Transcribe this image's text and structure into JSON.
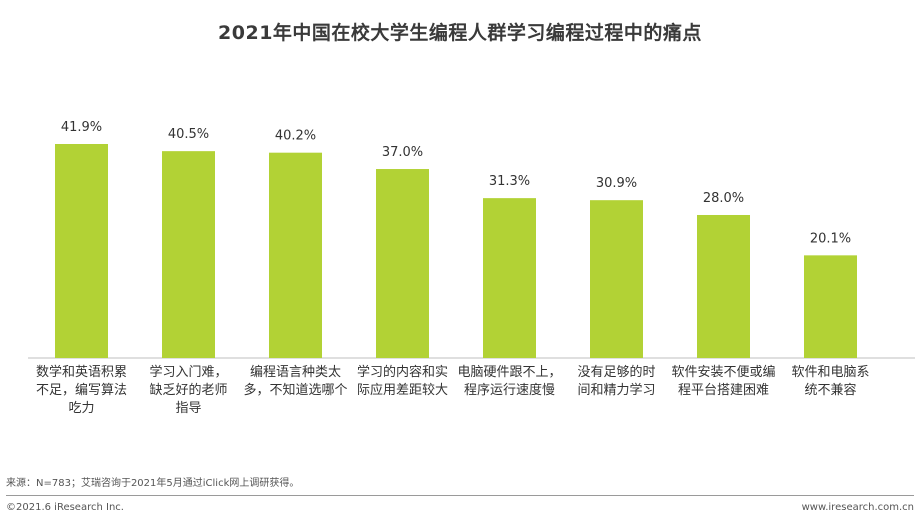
{
  "chart_data": {
    "type": "bar",
    "title": "2021年中国在校大学生编程人群学习编程过程中的痛点",
    "categories": [
      [
        "数学和英语积累",
        "不足，编写算法",
        "吃力"
      ],
      [
        "学习入门难，",
        "缺乏好的老师",
        "指导"
      ],
      [
        "编程语言种类太",
        "多，不知道选哪个"
      ],
      [
        "学习的内容和实",
        "际应用差距较大"
      ],
      [
        "电脑硬件跟不上，",
        "程序运行速度慢"
      ],
      [
        "没有足够的时",
        "间和精力学习"
      ],
      [
        "软件安装不便或编",
        "程平台搭建困难"
      ],
      [
        "软件和电脑系",
        "统不兼容"
      ]
    ],
    "values": [
      41.9,
      40.5,
      40.2,
      37.0,
      31.3,
      30.9,
      28.0,
      20.1
    ],
    "value_labels": [
      "41.9%",
      "40.5%",
      "40.2%",
      "37.0%",
      "31.3%",
      "30.9%",
      "28.0%",
      "20.1%"
    ],
    "ylim": [
      0,
      41.9
    ],
    "bar_color": "#b2d235",
    "grid": false,
    "legend": "none"
  },
  "footer": {
    "source": "来源：N=783；艾瑞咨询于2021年5月通过iClick网上调研获得。",
    "copyright": "©2021.6 iResearch Inc.",
    "website": "www.iresearch.com.cn"
  }
}
